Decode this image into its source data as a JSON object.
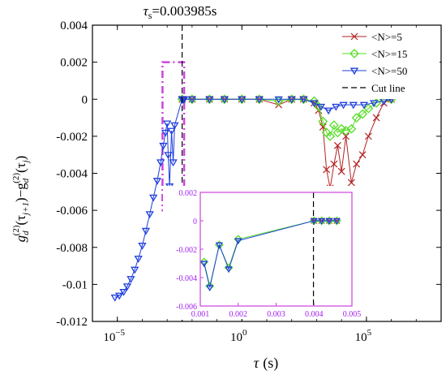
{
  "chart_data": [
    {
      "type": "line",
      "title": "τs=0.003985s",
      "title_parts": {
        "symbol": "τ",
        "subscript": "s",
        "value": "=0.003985s"
      },
      "xlabel": "τ (s)",
      "xlabel_parts": {
        "symbol": "τ",
        "unit": "(s)"
      },
      "ylabel": "g_d^(2)(τ_{j+1})−g_d^(2)(τ_j)",
      "ylabel_parts": {
        "g1": "g",
        "sub1": "d",
        "sup1": "(2)",
        "open1": "(τ",
        "sub_j1": "j+1",
        "close1": ")−g",
        "sub2": "d",
        "sup2": "(2)",
        "open2": "(τ",
        "sub_j2": "j",
        "close2": ")"
      },
      "xscale": "log",
      "xlim": [
        1e-06,
        100000000.0
      ],
      "ylim": [
        -0.012,
        0.004
      ],
      "xticks": [
        {
          "value": 1e-05,
          "base": "10",
          "exp": "−5"
        },
        {
          "value": 1,
          "base": "10",
          "exp": "0"
        },
        {
          "value": 100000.0,
          "base": "10",
          "exp": "5"
        }
      ],
      "yticks": [
        {
          "value": 0.004,
          "label": "0.004"
        },
        {
          "value": 0.002,
          "label": "0.002"
        },
        {
          "value": 0,
          "label": "0"
        },
        {
          "value": -0.002,
          "label": "-0.002"
        },
        {
          "value": -0.004,
          "label": "-0.004"
        },
        {
          "value": -0.006,
          "label": "-0.006"
        },
        {
          "value": -0.008,
          "label": "-0.008"
        },
        {
          "value": -0.01,
          "label": "-0.01"
        },
        {
          "value": -0.012,
          "label": "-0.012"
        }
      ],
      "grid": false,
      "legend_position": "top-right",
      "cut_line_x": 0.003985,
      "highlight_box": {
        "x": [
          0.00065,
          0.0048
        ],
        "y": [
          -0.006,
          0.002
        ],
        "color": "#cc44dd"
      },
      "series": [
        {
          "name": "<N>=5",
          "color": "#b22222",
          "marker": "x",
          "x": [
            0.004,
            0.01,
            0.05,
            0.2,
            1,
            5,
            30,
            100,
            300,
            800,
            1200,
            1800,
            2500,
            3500,
            5000,
            7000,
            10000,
            15000,
            25000,
            40000,
            70000,
            120000,
            250000,
            500000,
            1000000
          ],
          "y": [
            0,
            0,
            0,
            0,
            0,
            0,
            -0.0003,
            0,
            0,
            -0.0002,
            -0.0006,
            -0.0015,
            -0.0038,
            -0.0048,
            -0.0035,
            -0.0025,
            -0.0039,
            -0.002,
            -0.0045,
            -0.0035,
            -0.003,
            -0.002,
            -0.001,
            -0.0002,
            0
          ]
        },
        {
          "name": "<N>=15",
          "color": "#55dd22",
          "marker": "diamond",
          "x": [
            0.004,
            0.01,
            0.05,
            0.2,
            1,
            5,
            30,
            100,
            300,
            800,
            1200,
            1800,
            2500,
            3500,
            5000,
            7000,
            10000,
            15000,
            25000,
            40000,
            70000,
            120000,
            250000,
            500000,
            1000000
          ],
          "y": [
            0,
            0,
            0,
            0,
            0,
            0,
            -0.0001,
            0,
            0,
            -0.0001,
            -0.0004,
            -0.0012,
            -0.0018,
            -0.002,
            -0.0014,
            -0.0018,
            -0.0016,
            -0.0017,
            -0.0016,
            -0.001,
            -0.0008,
            -0.0005,
            -0.0002,
            0,
            0
          ]
        },
        {
          "name": "<N>=50",
          "color": "#1f3fdd",
          "marker": "triangle-down",
          "x": [
            8e-06,
            1.2e-05,
            1.8e-05,
            2.5e-05,
            3.5e-05,
            5e-05,
            7e-05,
            0.0001,
            0.00014,
            0.0002,
            0.00028,
            0.0004,
            0.00055,
            0.0007,
            0.00085,
            0.001,
            0.0011,
            0.00125,
            0.0015,
            0.00175,
            0.002,
            0.004,
            0.0042,
            0.0044,
            0.0046,
            0.0048,
            0.01,
            0.05,
            0.2,
            1,
            5,
            30,
            100,
            300,
            800,
            1500,
            3000,
            6000,
            12000,
            30000,
            80000,
            200000,
            500000,
            1000000
          ],
          "y": [
            -0.0107,
            -0.0106,
            -0.0104,
            -0.0101,
            -0.0097,
            -0.0092,
            -0.0086,
            -0.0079,
            -0.0071,
            -0.0062,
            -0.0053,
            -0.0044,
            -0.0034,
            -0.0025,
            -0.0018,
            -0.0013,
            -0.003,
            -0.0047,
            -0.0017,
            -0.0034,
            -0.0014,
            0,
            0,
            0,
            0,
            0,
            0,
            0,
            0,
            0,
            0,
            0,
            0,
            0,
            -0.0002,
            -0.0004,
            -0.0006,
            -0.0004,
            -0.0003,
            -0.0003,
            -0.0003,
            -0.0002,
            -0.0001,
            0
          ]
        },
        {
          "name": "Cut line",
          "color": "#000000",
          "style": "dashed"
        }
      ]
    },
    {
      "type": "line",
      "role": "inset",
      "xscale": "linear",
      "xlim": [
        0.001,
        0.005
      ],
      "ylim": [
        -0.006,
        0.002
      ],
      "xticks": [
        {
          "value": 0.001,
          "label": "0.001"
        },
        {
          "value": 0.002,
          "label": "0.002"
        },
        {
          "value": 0.003,
          "label": "0.003"
        },
        {
          "value": 0.004,
          "label": "0.004"
        },
        {
          "value": 0.005,
          "label": "0.005"
        }
      ],
      "yticks": [
        {
          "value": 0.002,
          "label": "0.002"
        },
        {
          "value": 0,
          "label": "0"
        },
        {
          "value": -0.002,
          "label": "-0.002"
        },
        {
          "value": -0.004,
          "label": "-0.004"
        },
        {
          "value": -0.006,
          "label": "-0.006"
        }
      ],
      "frame_color": "#cc44dd",
      "cut_line_x": 0.003985,
      "series": [
        {
          "name": "<N>=5",
          "color": "#b22222",
          "marker": "x",
          "x": [
            0.004,
            0.0042,
            0.0044,
            0.0046
          ],
          "y": [
            0,
            0,
            0,
            0
          ]
        },
        {
          "name": "<N>=15",
          "color": "#55dd22",
          "marker": "diamond",
          "x": [
            0.0011,
            0.00125,
            0.0015,
            0.00175,
            0.002,
            0.004,
            0.0042,
            0.0044,
            0.0046
          ],
          "y": [
            -0.0029,
            -0.0046,
            -0.0017,
            -0.0033,
            -0.0013,
            0,
            0,
            0,
            0
          ]
        },
        {
          "name": "<N>=50",
          "color": "#1f3fdd",
          "marker": "triangle-down",
          "x": [
            0.0011,
            0.00125,
            0.0015,
            0.00175,
            0.002,
            0.004,
            0.0042,
            0.0044,
            0.0046
          ],
          "y": [
            -0.003,
            -0.0047,
            -0.0017,
            -0.0034,
            -0.0014,
            0,
            0,
            0,
            0
          ]
        }
      ]
    }
  ]
}
